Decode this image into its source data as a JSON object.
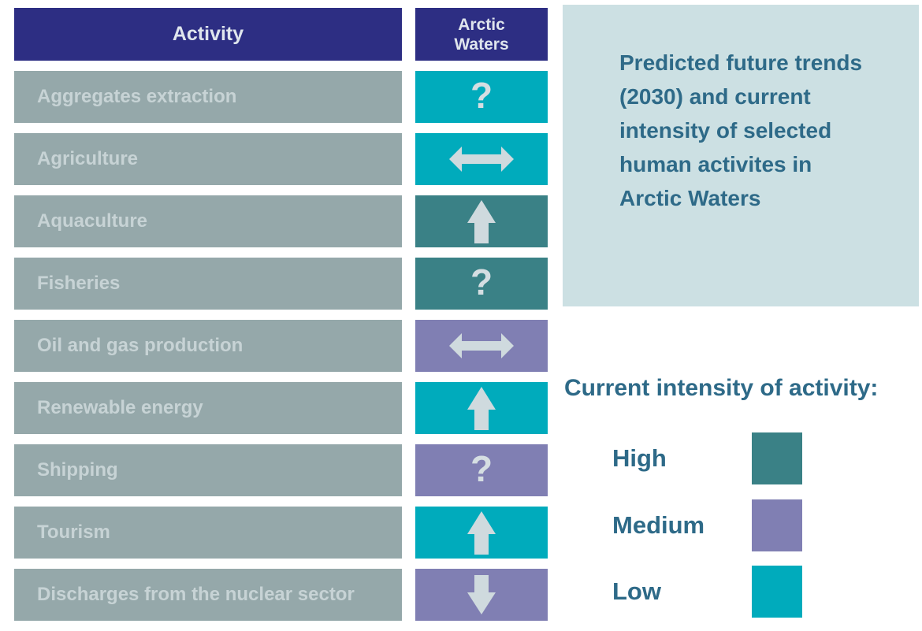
{
  "colors": {
    "header_bg": "#2D2E83",
    "header_text": "#DFE5ED",
    "row_bg": "#95A8AA",
    "row_text": "#C7D3D5",
    "glyph": "#CFDADE",
    "low": "#00ABBC",
    "medium": "#807FB3",
    "high": "#3A8186",
    "info_box_bg": "#CCE0E3",
    "accent_text": "#2E6A88"
  },
  "chart_data": {
    "type": "table",
    "title": "Predicted future trends (2030) and current intensity of selected human activites in Arctic Waters",
    "columns": [
      "Activity",
      "Arctic Waters"
    ],
    "rows": [
      {
        "activity": "Aggregates extraction",
        "intensity": "Low",
        "trend_2030": "uncertain",
        "symbol": "?"
      },
      {
        "activity": "Agriculture",
        "intensity": "Low",
        "trend_2030": "stable",
        "symbol": "left-right-arrow"
      },
      {
        "activity": "Aquaculture",
        "intensity": "High",
        "trend_2030": "increase",
        "symbol": "up-arrow"
      },
      {
        "activity": "Fisheries",
        "intensity": "High",
        "trend_2030": "uncertain",
        "symbol": "?"
      },
      {
        "activity": "Oil and gas production",
        "intensity": "Medium",
        "trend_2030": "stable",
        "symbol": "left-right-arrow"
      },
      {
        "activity": "Renewable energy",
        "intensity": "Low",
        "trend_2030": "increase",
        "symbol": "up-arrow"
      },
      {
        "activity": "Shipping",
        "intensity": "Medium",
        "trend_2030": "uncertain",
        "symbol": "?"
      },
      {
        "activity": "Tourism",
        "intensity": "Low",
        "trend_2030": "increase",
        "symbol": "up-arrow"
      },
      {
        "activity": "Discharges from the nuclear sector",
        "intensity": "Medium",
        "trend_2030": "decrease",
        "symbol": "down-arrow"
      }
    ],
    "legend": {
      "title": "Current intensity of activity:",
      "entries": [
        {
          "label": "High",
          "color": "#3A8186"
        },
        {
          "label": "Medium",
          "color": "#807FB3"
        },
        {
          "label": "Low",
          "color": "#00ABBC"
        }
      ]
    },
    "layout_hints": {
      "legend_position": "bottom-right",
      "grid": false
    }
  }
}
